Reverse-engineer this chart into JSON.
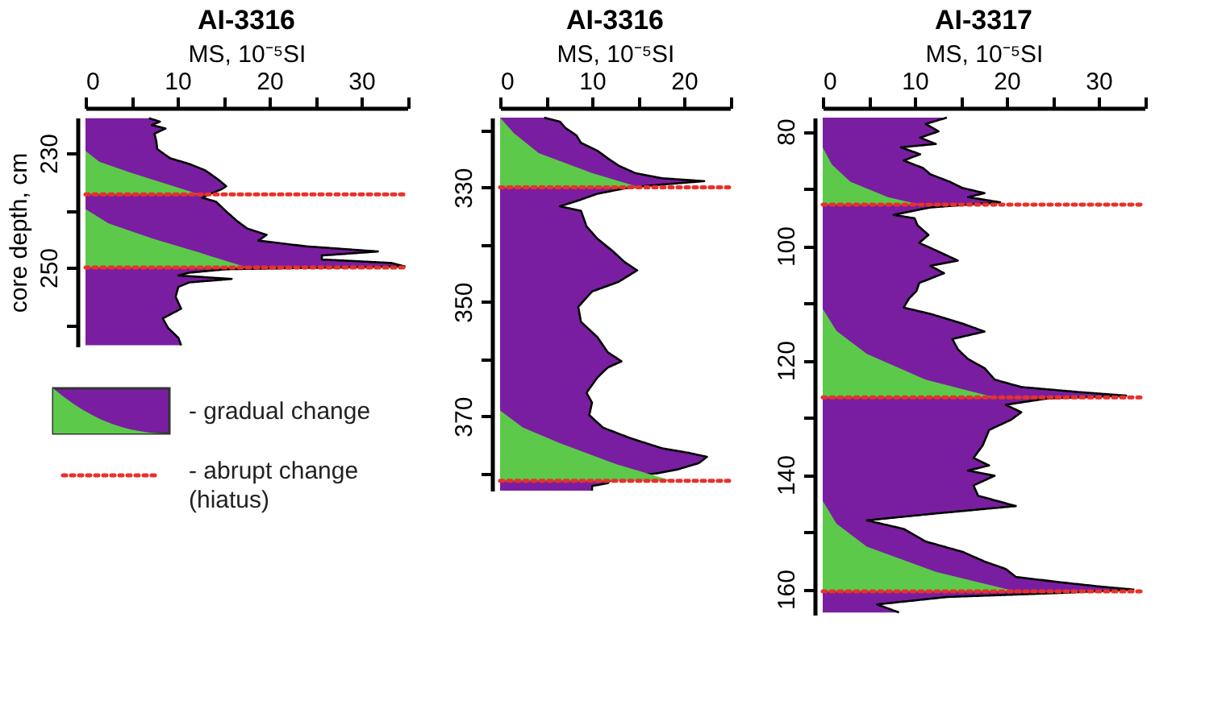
{
  "chart_data": [
    {
      "type": "area",
      "orientation": "horizontal",
      "title": "AI-3316",
      "xlabel": "MS, 10⁻⁵SI",
      "ylabel": "core depth, cm",
      "xlim": [
        0,
        35
      ],
      "xticks": [
        0,
        {
          "value": 5,
          "label": null
        },
        10,
        {
          "value": 15,
          "label": null
        },
        20,
        {
          "value": 25,
          "label": null
        },
        30,
        {
          "value": 35,
          "label": null
        }
      ],
      "ylim": [
        263.8,
        223.8
      ],
      "yticks": [
        230,
        {
          "value": 240,
          "label": null
        },
        250,
        {
          "value": 260,
          "label": null
        }
      ],
      "legend": "bottom",
      "series": [
        {
          "color": "#7a1ea1",
          "line_style": "solid",
          "x": [
            223.9,
            224.5,
            225.1,
            225.7,
            226.6,
            227.9,
            229.3,
            230.9,
            231.9,
            233.0,
            234.7,
            235.8,
            236.4,
            237.1,
            237.8,
            238.5,
            240.2,
            241.9,
            243.2,
            244.3,
            245.3,
            246.3,
            247.2,
            247.9,
            248.6,
            249.2,
            249.8,
            250.3,
            250.9,
            251.4,
            252.0,
            252.6,
            253.4,
            255.1,
            257.2,
            258.9,
            260.6,
            262.3,
            263.6
          ],
          "values": [
            6.9,
            8.1,
            7.2,
            8.7,
            7.5,
            7.7,
            7.8,
            9.2,
            11.3,
            13,
            14.5,
            15.3,
            14.7,
            13.6,
            12.7,
            14.2,
            15.3,
            16.5,
            17.6,
            19.7,
            18.8,
            24,
            31.8,
            25.7,
            25.7,
            33.2,
            34.7,
            15.3,
            11.3,
            10.1,
            15.9,
            11.3,
            10.1,
            9.8,
            10.4,
            8.4,
            9,
            10.1,
            10.4
          ]
        },
        {
          "name": "- gradual change",
          "color": "#5cc94a",
          "x": [
            229.6,
            231.5,
            233.4,
            235.5,
            237.2,
            238.5,
            239.8,
            242.3,
            244.9,
            247.4,
            250
          ],
          "values": [
            0,
            1.5,
            4.9,
            9,
            12.4,
            null,
            0,
            2.5,
            7.2,
            12.4,
            17.6
          ]
        }
      ],
      "ref_lines": [
        {
          "axis": "y",
          "value": 237.2,
          "color": "#e8312a",
          "line_style": "dotted"
        },
        {
          "axis": "y",
          "value": 250,
          "color": "#e8312a",
          "line_style": "dotted"
        }
      ],
      "annotations": [
        "- abrupt change (hiatus)"
      ]
    },
    {
      "type": "area",
      "orientation": "horizontal",
      "title": "AI-3316",
      "xlabel": "MS, 10⁻⁵SI",
      "xlim": [
        0,
        25
      ],
      "xticks": [
        0,
        {
          "value": 5,
          "label": null
        },
        10,
        {
          "value": 15,
          "label": null
        },
        20,
        {
          "value": 25,
          "label": null
        }
      ],
      "ylim": [
        383,
        317.8
      ],
      "yticks": [
        {
          "value": 320,
          "label": null
        },
        330,
        {
          "value": 340,
          "label": null
        },
        350,
        {
          "value": 360,
          "label": null
        },
        370,
        {
          "value": 380,
          "label": null
        }
      ],
      "series": [
        {
          "color": "#7a1ea1",
          "line_style": "solid",
          "x": [
            317.8,
            318.5,
            319.6,
            320.9,
            322.2,
            323.6,
            324.9,
            326.2,
            327.5,
            328.4,
            328.9,
            329.5,
            330.0,
            331.1,
            332.4,
            333.3,
            334.1,
            336.8,
            339.0,
            341.2,
            343.0,
            344.5,
            346.5,
            348.2,
            350.9,
            353.5,
            356.2,
            358.8,
            360.4,
            361.5,
            363.2,
            365.9,
            367.6,
            369.8,
            372.0,
            373.8,
            375.6,
            376.4,
            377.1,
            378.2,
            379.3,
            380.0,
            380.8,
            381.7,
            382.2,
            383.0
          ],
          "values": [
            4.8,
            6.5,
            7.1,
            8.3,
            8.8,
            10.6,
            11.7,
            12.9,
            14.7,
            17.6,
            22.2,
            17.6,
            14.1,
            10.6,
            8.3,
            6.5,
            8.8,
            9.4,
            10.6,
            12.3,
            13.5,
            14.9,
            12.9,
            10,
            8.5,
            8.8,
            10.6,
            11.7,
            13.2,
            11.7,
            10.6,
            9.4,
            10,
            9.7,
            11.2,
            14.1,
            17.6,
            20.5,
            22.5,
            21.6,
            19.3,
            17,
            12.3,
            11.7,
            10,
            10
          ]
        },
        {
          "color": "#5cc94a",
          "x": [
            317.8,
            320.5,
            324,
            327.5,
            330,
            340,
            369,
            372,
            374.7,
            378.2,
            381.3
          ],
          "values": [
            0,
            1.5,
            4.2,
            10,
            15.2,
            null,
            0,
            2.5,
            6.5,
            12.3,
            18.7
          ]
        }
      ],
      "ref_lines": [
        {
          "axis": "y",
          "value": 330,
          "color": "#e8312a",
          "line_style": "dotted"
        },
        {
          "axis": "y",
          "value": 381.3,
          "color": "#e8312a",
          "line_style": "dotted"
        }
      ]
    },
    {
      "type": "area",
      "orientation": "horizontal",
      "title": "AI-3317",
      "xlabel": "MS, 10⁻⁵SI",
      "xlim": [
        0,
        35
      ],
      "xticks": [
        0,
        {
          "value": 5,
          "label": null
        },
        10,
        {
          "value": 15,
          "label": null
        },
        20,
        {
          "value": 25,
          "label": null
        },
        30,
        {
          "value": 35,
          "label": null
        }
      ],
      "ylim": [
        164.5,
        77.6
      ],
      "yticks": [
        80,
        {
          "value": 90,
          "label": null
        },
        100,
        {
          "value": 110,
          "label": null
        },
        120,
        {
          "value": 130,
          "label": null
        },
        140,
        {
          "value": 150,
          "label": null
        },
        160
      ],
      "series": [
        {
          "color": "#7a1ea1",
          "line_style": "solid",
          "x": [
            77.6,
            78.7,
            80,
            81.1,
            82.2,
            82.8,
            84,
            85.1,
            86.4,
            87.5,
            88.8,
            89.9,
            90.8,
            91.5,
            92.4,
            93.3,
            94.6,
            95.2,
            96.4,
            98.1,
            99.5,
            100.8,
            102.6,
            103.5,
            104.8,
            106.5,
            107.9,
            109.2,
            110.8,
            111.9,
            113.6,
            115,
            116.3,
            118.1,
            119.8,
            121.4,
            123.4,
            124.7,
            125.6,
            126.2,
            126.7,
            127.8,
            129.1,
            130.4,
            132.2,
            134.9,
            137.1,
            138.4,
            139.3,
            140.2,
            141.9,
            143.7,
            145.5,
            146.8,
            148,
            149.5,
            151.7,
            153.5,
            155.2,
            156.5,
            157.9,
            158.8,
            159.6,
            160.1,
            160.7,
            161.4,
            162.7,
            164.1
          ],
          "values": [
            13.5,
            11.2,
            12.6,
            10.6,
            12.3,
            8.5,
            10.6,
            8.8,
            10.9,
            11.7,
            13.8,
            15.2,
            17.6,
            15.8,
            19.3,
            11.7,
            7.7,
            10,
            10.3,
            11.5,
            10.5,
            12.3,
            14.7,
            11.7,
            13.2,
            10.5,
            10.2,
            9.4,
            8.8,
            11.7,
            15.2,
            17.6,
            14.1,
            14.7,
            15.8,
            17.6,
            18.7,
            21.6,
            28,
            33,
            24.4,
            19.9,
            21.6,
            20.5,
            18.1,
            17.4,
            16.4,
            18.1,
            15.8,
            18.7,
            16.4,
            16.9,
            21,
            12.3,
            4.8,
            8.8,
            11.2,
            15.2,
            17.6,
            19.9,
            21,
            25.7,
            30.3,
            33.8,
            25.7,
            13.5,
            5.9,
            8.3
          ]
        },
        {
          "color": "#5cc94a",
          "x": [
            82.8,
            85.8,
            88.8,
            91.5,
            92.8,
            100,
            111,
            114.9,
            118.9,
            123.4,
            126.5,
            135,
            144.6,
            148.6,
            152.6,
            157,
            160.4
          ],
          "values": [
            0,
            1,
            3,
            7.1,
            10.6,
            null,
            0,
            1.5,
            4.8,
            11.2,
            18.7,
            null,
            0,
            1.5,
            4.8,
            12.3,
            21
          ]
        }
      ],
      "ref_lines": [
        {
          "axis": "y",
          "value": 92.8,
          "color": "#e8312a",
          "line_style": "dotted"
        },
        {
          "axis": "y",
          "value": 126.5,
          "color": "#e8312a",
          "line_style": "dotted"
        },
        {
          "axis": "y",
          "value": 160.4,
          "color": "#e8312a",
          "line_style": "dotted"
        }
      ]
    }
  ]
}
